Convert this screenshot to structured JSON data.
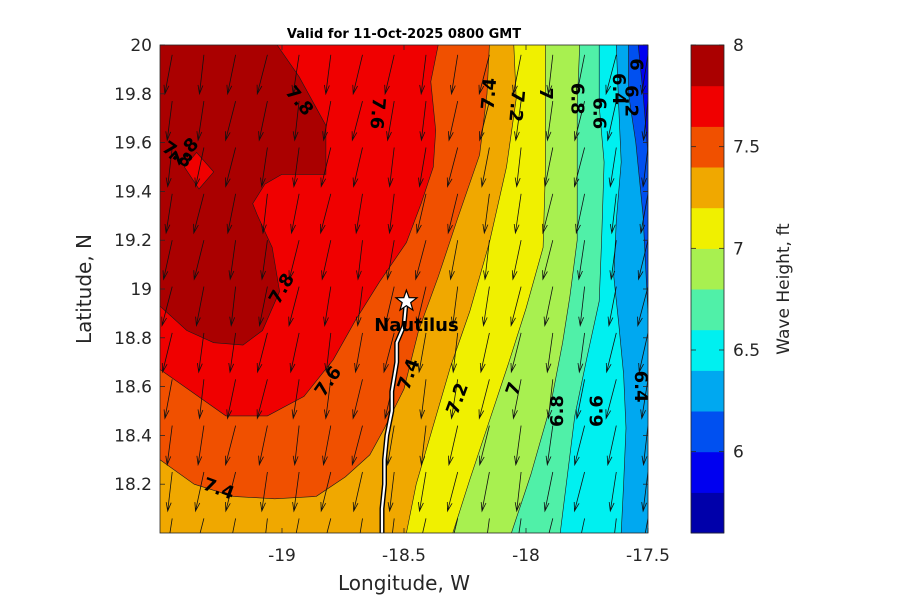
{
  "chart_data": {
    "type": "heatmap",
    "subtype": "filled-contour with vector arrows",
    "title": "Valid for 11-Oct-2025 0800 GMT",
    "xlabel": "Longitude, W",
    "ylabel": "Latitude, N",
    "xlim": [
      -19.5,
      -17.5
    ],
    "ylim": [
      18.0,
      20.0
    ],
    "xticks": [
      -19,
      -18.5,
      -18,
      -17.5
    ],
    "xtick_labels": [
      "-19",
      "-18.5",
      "-18",
      "-17.5"
    ],
    "yticks": [
      18.2,
      18.4,
      18.6,
      18.8,
      19.0,
      19.2,
      19.4,
      19.6,
      19.8,
      20.0
    ],
    "ytick_labels": [
      "18.2",
      "18.4",
      "18.6",
      "18.8",
      "19",
      "19.2",
      "19.4",
      "19.6",
      "19.8",
      "20"
    ],
    "colorbar": {
      "label": "Wave Height, ft",
      "range": [
        5.6,
        8.0
      ],
      "ticks": [
        6,
        6.5,
        7,
        7.5,
        8
      ],
      "tick_labels": [
        "6",
        "6.5",
        "7",
        "7.5",
        "8"
      ],
      "levels": [
        5.6,
        5.8,
        6.0,
        6.2,
        6.4,
        6.6,
        6.8,
        7.0,
        7.2,
        7.4,
        7.6,
        7.8,
        8.0
      ],
      "colors": [
        "#0000aa",
        "#0000f0",
        "#0050f0",
        "#00a8f0",
        "#00f0f0",
        "#50f0a8",
        "#a8f050",
        "#f0f000",
        "#f0a800",
        "#f05000",
        "#f00000",
        "#aa0000"
      ]
    },
    "contour_boundaries": [
      {
        "level": 7.8,
        "points": [
          [
            -19.5,
            18.93
          ],
          [
            -19.39,
            18.83
          ],
          [
            -19.28,
            18.78
          ],
          [
            -19.16,
            18.77
          ],
          [
            -19.08,
            18.83
          ],
          [
            -19.01,
            18.99
          ],
          [
            -19.04,
            19.17
          ],
          [
            -19.1,
            19.3
          ],
          [
            -19.12,
            19.35
          ],
          [
            -19.07,
            19.43
          ],
          [
            -19.0,
            19.47
          ],
          [
            -18.82,
            19.47
          ],
          [
            -18.82,
            19.67
          ],
          [
            -18.93,
            19.87
          ],
          [
            -19.02,
            20.0
          ]
        ]
      },
      {
        "level": 7.6,
        "points": [
          [
            -19.5,
            18.67
          ],
          [
            -19.4,
            18.6
          ],
          [
            -19.23,
            18.48
          ],
          [
            -19.06,
            18.48
          ],
          [
            -18.91,
            18.56
          ],
          [
            -18.79,
            18.71
          ],
          [
            -18.7,
            18.87
          ],
          [
            -18.6,
            19.03
          ],
          [
            -18.49,
            19.19
          ],
          [
            -18.43,
            19.35
          ],
          [
            -18.38,
            19.5
          ],
          [
            -18.37,
            19.65
          ],
          [
            -18.39,
            19.85
          ],
          [
            -18.36,
            20.0
          ]
        ]
      },
      {
        "level": 7.4,
        "points": [
          [
            -19.5,
            18.3
          ],
          [
            -19.36,
            18.2
          ],
          [
            -19.2,
            18.15
          ],
          [
            -19.03,
            18.14
          ],
          [
            -18.86,
            18.15
          ],
          [
            -18.74,
            18.23
          ],
          [
            -18.64,
            18.32
          ],
          [
            -18.58,
            18.43
          ],
          [
            -18.5,
            18.59
          ],
          [
            -18.44,
            18.83
          ],
          [
            -18.36,
            19.05
          ],
          [
            -18.28,
            19.29
          ],
          [
            -18.19,
            19.55
          ],
          [
            -18.16,
            19.8
          ],
          [
            -18.15,
            20.0
          ]
        ]
      },
      {
        "level": 7.2,
        "points": [
          [
            -18.49,
            18.0
          ],
          [
            -18.45,
            18.2
          ],
          [
            -18.38,
            18.44
          ],
          [
            -18.31,
            18.68
          ],
          [
            -18.23,
            18.91
          ],
          [
            -18.15,
            19.19
          ],
          [
            -18.08,
            19.5
          ],
          [
            -18.04,
            19.78
          ],
          [
            -18.05,
            20.0
          ]
        ]
      },
      {
        "level": 7.0,
        "points": [
          [
            -18.3,
            18.0
          ],
          [
            -18.23,
            18.22
          ],
          [
            -18.15,
            18.46
          ],
          [
            -18.07,
            18.7
          ],
          [
            -18.0,
            18.92
          ],
          [
            -17.93,
            19.17
          ],
          [
            -17.92,
            19.5
          ],
          [
            -17.92,
            19.75
          ],
          [
            -17.92,
            20.0
          ]
        ]
      },
      {
        "level": 6.8,
        "points": [
          [
            -18.06,
            18.0
          ],
          [
            -17.98,
            18.24
          ],
          [
            -17.9,
            18.52
          ],
          [
            -17.85,
            18.78
          ],
          [
            -17.82,
            18.97
          ],
          [
            -17.79,
            19.2
          ],
          [
            -17.79,
            19.5
          ],
          [
            -17.79,
            19.75
          ],
          [
            -17.78,
            20.0
          ]
        ]
      },
      {
        "level": 6.6,
        "points": [
          [
            -17.86,
            18.0
          ],
          [
            -17.83,
            18.24
          ],
          [
            -17.8,
            18.48
          ],
          [
            -17.75,
            18.72
          ],
          [
            -17.7,
            18.95
          ],
          [
            -17.69,
            19.2
          ],
          [
            -17.68,
            19.52
          ],
          [
            -17.7,
            19.75
          ],
          [
            -17.7,
            20.0
          ]
        ]
      },
      {
        "level": 6.4,
        "points": [
          [
            -17.61,
            18.0
          ],
          [
            -17.6,
            18.2
          ],
          [
            -17.59,
            18.43
          ],
          [
            -17.6,
            18.65
          ],
          [
            -17.62,
            18.86
          ],
          [
            -17.64,
            19.05
          ],
          [
            -17.63,
            19.28
          ],
          [
            -17.61,
            19.52
          ],
          [
            -17.62,
            19.75
          ],
          [
            -17.63,
            20.0
          ]
        ]
      },
      {
        "level": 6.2,
        "points": [
          [
            -17.5,
            18.9
          ],
          [
            -17.52,
            19.3
          ],
          [
            -17.55,
            19.6
          ],
          [
            -17.58,
            19.8
          ],
          [
            -17.58,
            20.0
          ]
        ]
      },
      {
        "level": 6.0,
        "points": [
          [
            -17.5,
            19.55
          ],
          [
            -17.52,
            19.8
          ],
          [
            -17.54,
            20.0
          ]
        ]
      }
    ],
    "island_7.8": [
      [
        -19.4,
        19.5
      ],
      [
        -19.35,
        19.56
      ],
      [
        -19.28,
        19.48
      ],
      [
        -19.34,
        19.41
      ]
    ],
    "contour_labels": [
      {
        "text": "7.8",
        "lon": -19.43,
        "lat": 19.55,
        "angle": 35
      },
      {
        "text": "7.8",
        "lon": -19.4,
        "lat": 19.56,
        "angle": -45
      },
      {
        "text": "7.8",
        "lon": -18.93,
        "lat": 19.77,
        "angle": 50
      },
      {
        "text": "7.8",
        "lon": -19.0,
        "lat": 19.0,
        "angle": -60
      },
      {
        "text": "7.6",
        "lon": -18.61,
        "lat": 19.72,
        "angle": 95
      },
      {
        "text": "7.6",
        "lon": -18.81,
        "lat": 18.62,
        "angle": -55
      },
      {
        "text": "7.4",
        "lon": -19.26,
        "lat": 18.18,
        "angle": 20
      },
      {
        "text": "7.4",
        "lon": -18.48,
        "lat": 18.65,
        "angle": -70
      },
      {
        "text": "7.4",
        "lon": -18.15,
        "lat": 19.8,
        "angle": -85
      },
      {
        "text": "7.2",
        "lon": -18.28,
        "lat": 18.55,
        "angle": -70
      },
      {
        "text": "7.2",
        "lon": -18.04,
        "lat": 19.75,
        "angle": 95
      },
      {
        "text": "7",
        "lon": -18.05,
        "lat": 18.59,
        "angle": -70
      },
      {
        "text": "7",
        "lon": -17.92,
        "lat": 19.8,
        "angle": 90
      },
      {
        "text": "6.8",
        "lon": -17.87,
        "lat": 18.5,
        "angle": -90
      },
      {
        "text": "6.8",
        "lon": -17.79,
        "lat": 19.78,
        "angle": 90
      },
      {
        "text": "6.6",
        "lon": -17.71,
        "lat": 18.5,
        "angle": -90
      },
      {
        "text": "6.6",
        "lon": -17.7,
        "lat": 19.72,
        "angle": 90
      },
      {
        "text": "6.4",
        "lon": -17.53,
        "lat": 18.6,
        "angle": 90
      },
      {
        "text": "6.4",
        "lon": -17.62,
        "lat": 19.82,
        "angle": 90
      },
      {
        "text": "6.2",
        "lon": -17.57,
        "lat": 19.77,
        "angle": 90
      },
      {
        "text": "6",
        "lon": -17.55,
        "lat": 19.92,
        "angle": 90
      }
    ],
    "vector_field": {
      "description": "wave direction arrows",
      "lons": [
        -19.45,
        -19.32,
        -19.19,
        -19.06,
        -18.93,
        -18.8,
        -18.67,
        -18.54,
        -18.41,
        -18.28,
        -18.15,
        -18.02,
        -17.89,
        -17.76,
        -17.63,
        -17.5
      ],
      "lats": [
        19.96,
        19.77,
        19.58,
        19.39,
        19.2,
        19.01,
        18.82,
        18.63,
        18.44,
        18.25,
        18.06
      ],
      "u": -0.03,
      "v": -0.16
    },
    "track": {
      "name": "Nautilus",
      "points": [
        [
          -18.49,
          18.96
        ],
        [
          -18.5,
          18.85
        ],
        [
          -18.53,
          18.78
        ],
        [
          -18.53,
          18.7
        ],
        [
          -18.55,
          18.58
        ],
        [
          -18.55,
          18.5
        ],
        [
          -18.57,
          18.4
        ],
        [
          -18.58,
          18.3
        ],
        [
          -18.58,
          18.2
        ],
        [
          -18.59,
          18.1
        ],
        [
          -18.59,
          18.0
        ]
      ],
      "marker": {
        "lon": -18.49,
        "lat": 18.95,
        "shape": "star"
      }
    }
  }
}
